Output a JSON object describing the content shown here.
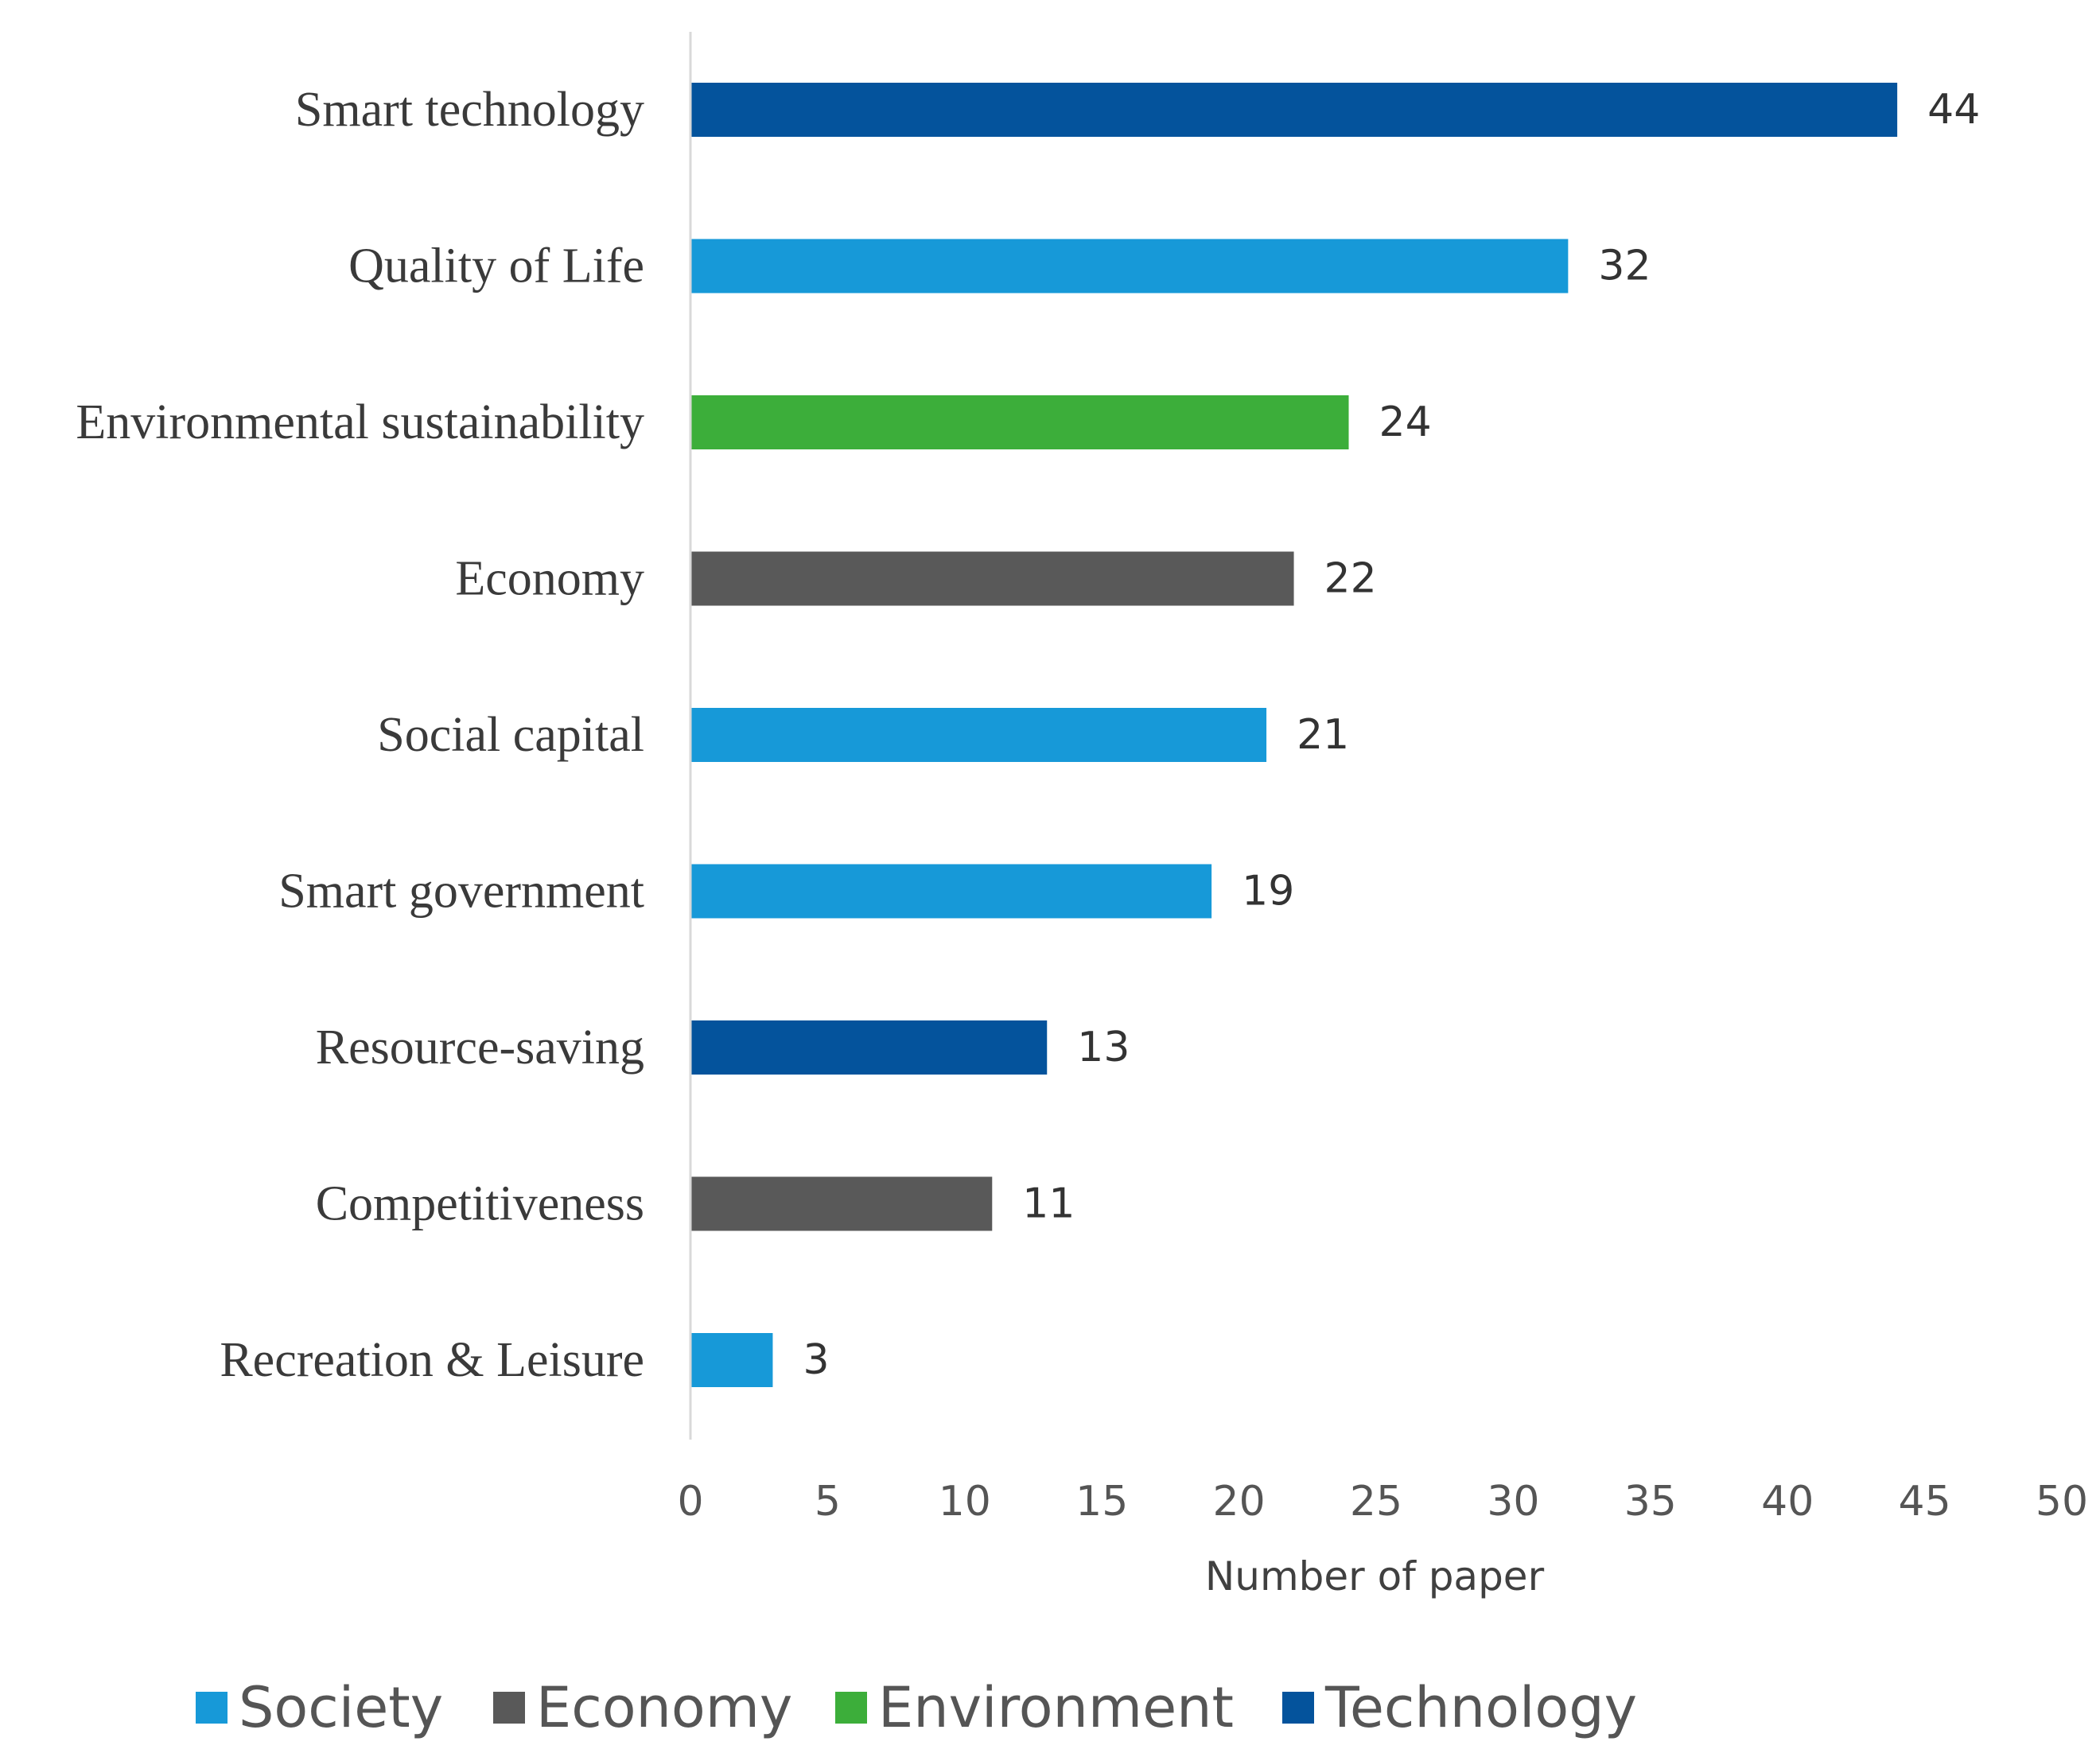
{
  "chart_data": {
    "type": "bar",
    "orientation": "horizontal",
    "title": "",
    "xlabel": "Number of paper",
    "ylabel": "",
    "xlim": [
      0,
      50
    ],
    "x_ticks": [
      0,
      5,
      10,
      15,
      20,
      25,
      30,
      35,
      40,
      45,
      50
    ],
    "grid": false,
    "legend_position": "bottom",
    "categories": [
      "Smart technology",
      "Quality of Life",
      "Environmental sustainability",
      "Economy",
      "Social capital",
      "Smart government",
      "Resource-saving",
      "Competitiveness",
      "Recreation & Leisure"
    ],
    "values": [
      44,
      32,
      24,
      22,
      21,
      19,
      13,
      11,
      3
    ],
    "bar_groups": [
      "Technology",
      "Society",
      "Environment",
      "Economy",
      "Society",
      "Society",
      "Technology",
      "Economy",
      "Society"
    ],
    "legend": [
      {
        "name": "Society",
        "color": "#1799d8"
      },
      {
        "name": "Economy",
        "color": "#595959"
      },
      {
        "name": "Environment",
        "color": "#3cae3a"
      },
      {
        "name": "Technology",
        "color": "#04539c"
      }
    ],
    "axis_color": "#d9d9d9"
  }
}
